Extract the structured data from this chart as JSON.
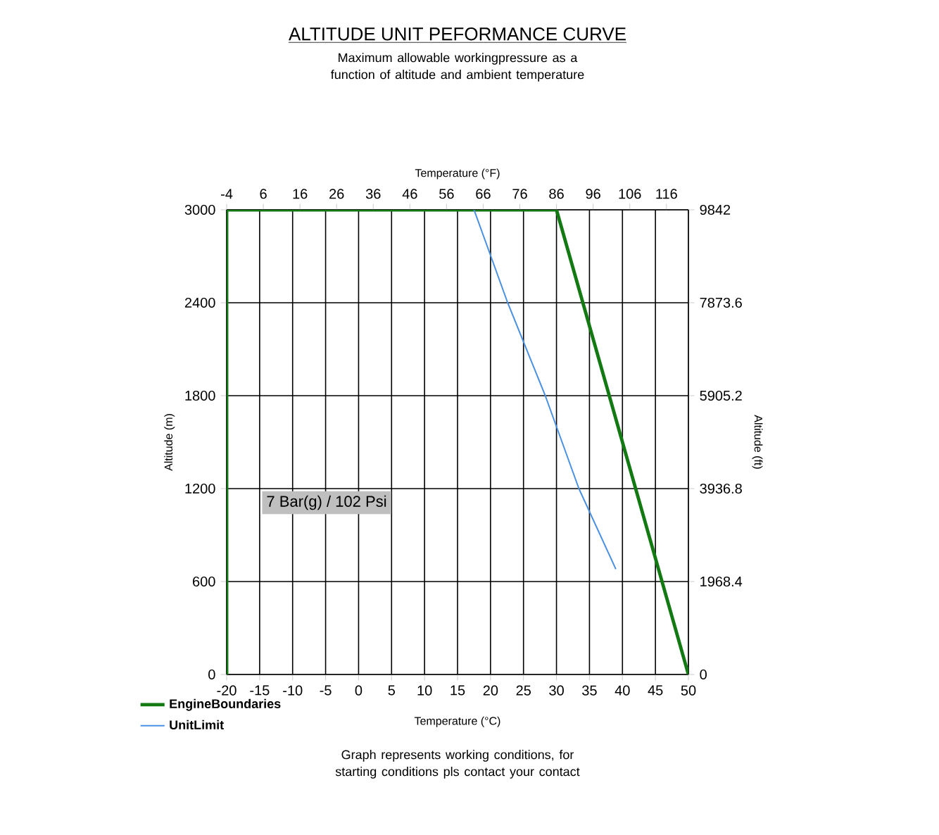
{
  "chart_data": {
    "type": "line",
    "title": "ALTITUDE UNIT PEFORMANCE CURVE",
    "subtitle": "Maximum allowable workingpressure as a function of altitude and ambient temperature",
    "xlabel": "Temperature (°C)",
    "x2label": "Temperature (°F)",
    "ylabel": "Altitude (m)",
    "y2label": "Altitude (ft)",
    "xlim": [
      -20,
      50
    ],
    "xticks": [
      -20,
      -15,
      -10,
      -5,
      0,
      5,
      10,
      15,
      20,
      25,
      30,
      35,
      40,
      45,
      50
    ],
    "x2lim": [
      -4,
      122
    ],
    "x2ticks": [
      -4,
      6,
      16,
      26,
      36,
      46,
      56,
      66,
      76,
      86,
      96,
      106,
      116
    ],
    "ylim": [
      0,
      3000
    ],
    "yticks": [
      0,
      600,
      1200,
      1800,
      2400,
      3000
    ],
    "y2lim": [
      0,
      9842
    ],
    "y2ticks": [
      0,
      1968.4,
      3936.8,
      5905.2,
      7873.6,
      9842
    ],
    "series": [
      {
        "name": "EngineBoundaries",
        "color": "#137a13",
        "x": [
          -20,
          -20,
          30,
          50
        ],
        "values": [
          0,
          3000,
          3000,
          0
        ]
      },
      {
        "name": "UnitLimit",
        "color": "#4a90e2",
        "x": [
          17.5,
          22.6,
          28.3,
          33.4,
          39
        ],
        "values": [
          3000,
          2400,
          1800,
          1200,
          680
        ]
      }
    ],
    "grid": true,
    "legend": "bottom left",
    "annotations": [
      "7 Bar(g) / 102 Psi",
      "Graph represents working conditions, for starting conditions pls contact your contact"
    ]
  }
}
